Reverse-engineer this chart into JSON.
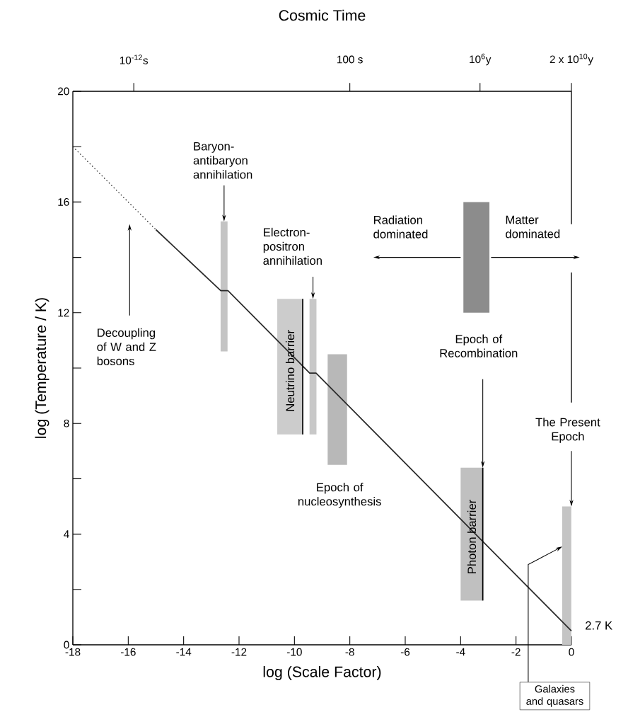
{
  "chart_data": {
    "type": "line",
    "xlabel": "log (Scale Factor)",
    "ylabel": "log (Temperature / K)",
    "x2label": "Cosmic Time",
    "xlim": [
      -18,
      0
    ],
    "ylim": [
      0,
      20
    ],
    "xticks": [
      -18,
      -16,
      -14,
      -12,
      -10,
      -8,
      -6,
      -4,
      -2,
      0
    ],
    "yticks": [
      0,
      {
        "value": 2,
        "label": null
      },
      4,
      {
        "value": 6,
        "label": null
      },
      8,
      {
        "value": 10,
        "label": null
      },
      12,
      {
        "value": 14,
        "label": null
      },
      16,
      {
        "value": 18,
        "label": null
      },
      20
    ],
    "series": [
      {
        "type": "bar",
        "x": [
          -12.54,
          -10.16,
          -9.33,
          -8.45,
          -3.6,
          -3.43,
          -0.17
        ],
        "base": [
          10.6,
          7.6,
          7.6,
          6.5,
          1.6,
          12,
          0
        ],
        "values": [
          4.7,
          4.9,
          4.9,
          4.0,
          4.8,
          4.0,
          5.0
        ],
        "colors": [
          "#c4c4c4",
          "#cccccc",
          "#c8c8c8",
          "#b8b8b8",
          "#c0c0c0",
          "#8c8c8c",
          "#c4c4c4"
        ]
      },
      {
        "line_style": "dotted",
        "color": "#2a2a2a",
        "x": [
          -18,
          -15
        ],
        "values": [
          18,
          15
        ]
      },
      {
        "line_style": "solid",
        "color": "#2a2a2a",
        "x": [
          -15,
          -12.66,
          -12.4,
          -9.45,
          -9.22,
          0
        ],
        "values": [
          15,
          12.8,
          12.8,
          9.82,
          9.82,
          0.5
        ]
      },
      {
        "line_style": "solid",
        "color": "#000000",
        "x": [
          -9.7,
          -9.7
        ],
        "values": [
          7.6,
          12.5
        ]
      },
      {
        "line_style": "solid",
        "color": "#000000",
        "x": [
          -3.2,
          -3.2
        ],
        "values": [
          1.6,
          6.4
        ]
      }
    ],
    "annotations": [
      {
        "text": "Baryon-antibaryon annihilation",
        "x": -12.54,
        "y": 15.3
      },
      {
        "text": "Electron-positron annihilation",
        "x": -9.33,
        "y": 12.5
      },
      "Decoupling of W and Z bosons",
      "Neutrino barrier",
      "Epoch of nucleosynthesis",
      "Radiation dominated",
      "Matter dominated",
      "Epoch of Recombination",
      "Photon barrier",
      {
        "text": "The  Present Epoch",
        "x": 0,
        "y": 5
      },
      {
        "text": "Galaxies and quasars",
        "x": -0.33,
        "y": 3.55
      },
      {
        "text": "2.7 K",
        "x": 0,
        "y": 0.5
      },
      "10$^{-12}$s",
      "100 s",
      "10$^{6}$y",
      "2 x 10$^{10}$y"
    ]
  }
}
